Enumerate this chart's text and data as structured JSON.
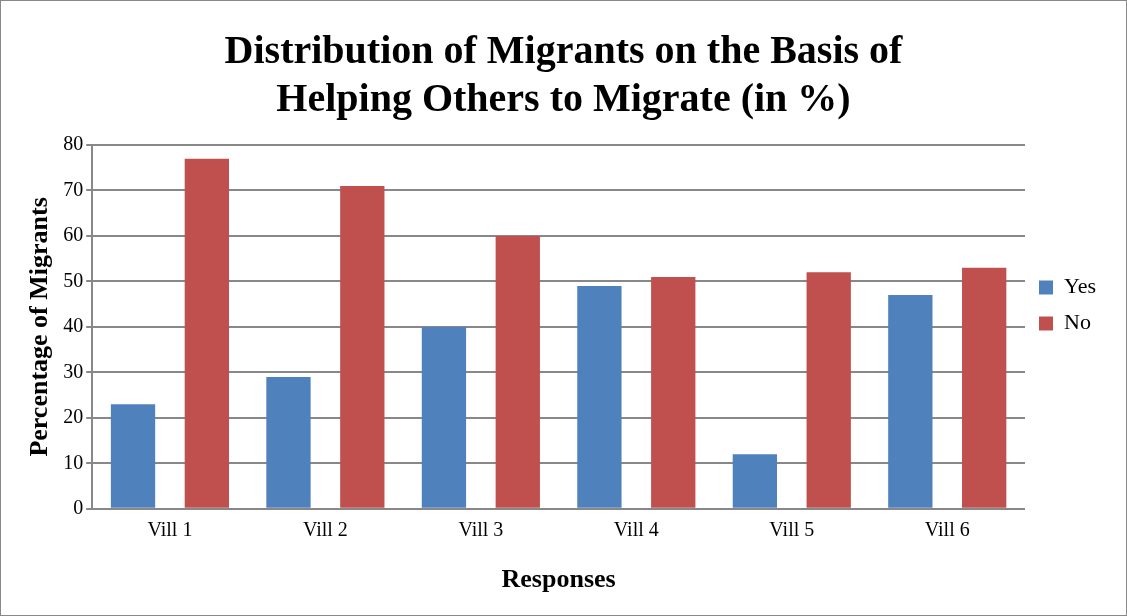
{
  "chart_data": {
    "type": "bar",
    "title": "Distribution of Migrants on the Basis of Helping Others to Migrate (in %)",
    "xlabel": "Responses",
    "ylabel": "Percentage of Migrants",
    "categories": [
      "Vill 1",
      "Vill 2",
      "Vill 3",
      "Vill 4",
      "Vill 5",
      "Vill 6"
    ],
    "series": [
      {
        "name": "Yes",
        "color": "#4f81bd",
        "values": [
          23,
          29,
          40,
          49,
          12,
          47
        ]
      },
      {
        "name": "No",
        "color": "#c0504d",
        "values": [
          77,
          71,
          60,
          51,
          52,
          53
        ]
      }
    ],
    "ylim": [
      0,
      80
    ],
    "yticks": [
      0,
      10,
      20,
      30,
      40,
      50,
      60,
      70,
      80
    ],
    "grid": "y",
    "legend": "right"
  }
}
